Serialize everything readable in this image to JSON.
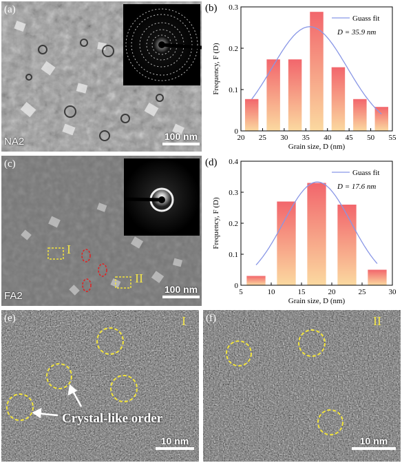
{
  "panels": {
    "a": {
      "label": "(a)",
      "sample": "NA2",
      "scale_bar": "100 nm"
    },
    "b": {
      "label": "(b)"
    },
    "c": {
      "label": "(c)",
      "sample": "FA2",
      "scale_bar": "100 nm",
      "region_I": "I",
      "region_II": "II"
    },
    "d": {
      "label": "(d)"
    },
    "e": {
      "label": "(e)",
      "region": "I",
      "annotation": "Crystal-like order",
      "scale_bar": "10 nm"
    },
    "f": {
      "label": "(f)",
      "region": "II",
      "scale_bar": "10 nm"
    }
  },
  "colors": {
    "bar_top": "#f2666c",
    "bar_bottom": "#fbd9a0",
    "fit_line": "#8896e6",
    "circle": "#f2e43c",
    "red_circle": "#e02020"
  },
  "chart_data": [
    {
      "type": "bar",
      "panel": "b",
      "xlabel": "Grain size, D (nm)",
      "ylabel": "Frequency, F (D)",
      "xlim": [
        20,
        55
      ],
      "ylim": [
        0,
        0.3
      ],
      "xticks": [
        20,
        25,
        30,
        35,
        40,
        45,
        50,
        55
      ],
      "yticks": [
        0,
        0.1,
        0.2,
        0.3
      ],
      "bin_width": 5,
      "x": [
        22.5,
        27.5,
        32.5,
        37.5,
        42.5,
        47.5,
        52.5
      ],
      "values": [
        0.077,
        0.173,
        0.173,
        0.288,
        0.154,
        0.077,
        0.058
      ],
      "fit": {
        "name": "Guass fit",
        "mean": 35.9,
        "sigma": 8.7,
        "peak": 0.252
      },
      "annotation": "D = 35.9 nm",
      "legend": "top-right"
    },
    {
      "type": "bar",
      "panel": "d",
      "xlabel": "Grain size, D (nm)",
      "ylabel": "Frequency, F (D)",
      "xlim": [
        5,
        30
      ],
      "ylim": [
        0,
        0.4
      ],
      "xticks": [
        5,
        10,
        15,
        20,
        25,
        30
      ],
      "yticks": [
        0,
        0.1,
        0.2,
        0.3,
        0.4
      ],
      "bin_width": 5,
      "x": [
        7.5,
        12.5,
        17.5,
        22.5,
        27.5
      ],
      "values": [
        0.03,
        0.27,
        0.33,
        0.26,
        0.05
      ],
      "fit": {
        "name": "Guass fit",
        "mean": 17.6,
        "sigma": 5.6,
        "peak": 0.333
      },
      "annotation": "D = 17.6 nm",
      "legend": "top-right"
    }
  ]
}
